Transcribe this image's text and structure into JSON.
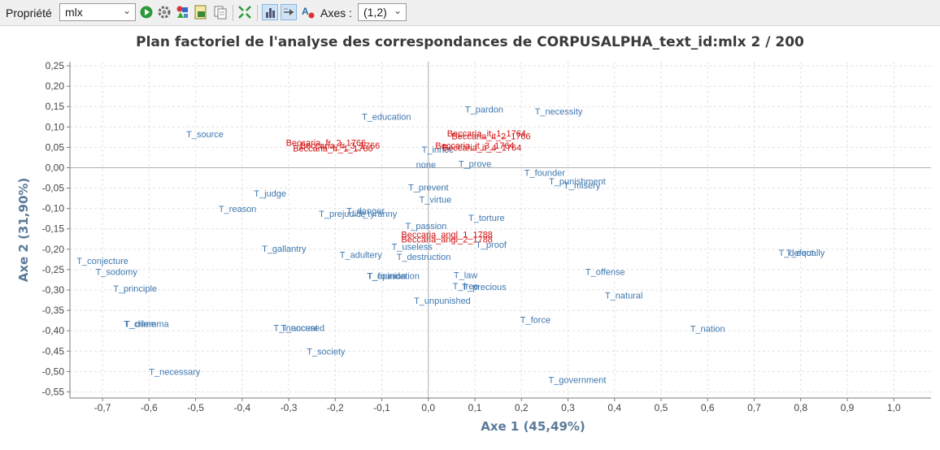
{
  "toolbar": {
    "property_label": "Propriété",
    "property_value": "mlx",
    "axes_label": "Axes :",
    "axes_value": "(1,2)",
    "icons": [
      "play-icon",
      "settings-icon",
      "shapes-icon",
      "export-icon",
      "copy-icon",
      "fit-icon",
      "bar-toggle-icon",
      "label-toggle-icon",
      "font-icon"
    ]
  },
  "chart_data": {
    "type": "scatter",
    "title": "Plan factoriel de l'analyse des correspondances de CORPUSALPHA_text_id:mlx 2 / 200",
    "xlabel": "Axe 1 (45,49%)",
    "ylabel": "Axe 2 (31,90%)",
    "xlim": [
      -0.77,
      1.08
    ],
    "ylim": [
      -0.565,
      0.26
    ],
    "xticks": [
      -0.7,
      -0.6,
      -0.5,
      -0.4,
      -0.3,
      -0.2,
      -0.1,
      0.0,
      0.1,
      0.2,
      0.3,
      0.4,
      0.5,
      0.6,
      0.7,
      0.8,
      0.9,
      1.0
    ],
    "xtick_labels": [
      "-0,7",
      "-0,6",
      "-0,5",
      "-0,4",
      "-0,3",
      "-0,2",
      "-0,1",
      "0,0",
      "0,1",
      "0,2",
      "0,3",
      "0,4",
      "0,5",
      "0,6",
      "0,7",
      "0,8",
      "0,9",
      "1,0"
    ],
    "yticks": [
      0.25,
      0.2,
      0.15,
      0.1,
      0.05,
      0.0,
      -0.05,
      -0.1,
      -0.15,
      -0.2,
      -0.25,
      -0.3,
      -0.35,
      -0.4,
      -0.45,
      -0.5,
      -0.55
    ],
    "ytick_labels": [
      "0,25",
      "0,20",
      "0,15",
      "0,10",
      "0,05",
      "0,00",
      "-0,05",
      "-0,10",
      "-0,15",
      "-0,20",
      "-0,25",
      "-0,30",
      "-0,35",
      "-0,40",
      "-0,45",
      "-0,50",
      "-0,55"
    ],
    "grid": true,
    "colors": {
      "cols": "#3f78b0",
      "rows": "#d11111",
      "axis": "#7a7a7a",
      "grid": "#e2e2e2",
      "label": "#5a7a99"
    },
    "points": [
      {
        "label": "T_education",
        "x": -0.09,
        "y": 0.125,
        "cls": "cols"
      },
      {
        "label": "T_pardon",
        "x": 0.12,
        "y": 0.143,
        "cls": "cols"
      },
      {
        "label": "T_necessity",
        "x": 0.28,
        "y": 0.138,
        "cls": "cols"
      },
      {
        "label": "T_source",
        "x": -0.48,
        "y": 0.083,
        "cls": "cols"
      },
      {
        "label": "none",
        "x": -0.005,
        "y": 0.008,
        "cls": "cols"
      },
      {
        "label": "T_prove",
        "x": 0.1,
        "y": 0.01,
        "cls": "cols"
      },
      {
        "label": "T_founder",
        "x": 0.25,
        "y": -0.012,
        "cls": "cols"
      },
      {
        "label": "T_punishment",
        "x": 0.32,
        "y": -0.033,
        "cls": "cols"
      },
      {
        "label": "T_misery",
        "x": 0.33,
        "y": -0.043,
        "cls": "cols"
      },
      {
        "label": "T_judge",
        "x": -0.34,
        "y": -0.063,
        "cls": "cols"
      },
      {
        "label": "T_prevent",
        "x": 0.0,
        "y": -0.048,
        "cls": "cols"
      },
      {
        "label": "T_virtue",
        "x": 0.015,
        "y": -0.078,
        "cls": "cols"
      },
      {
        "label": "T_reason",
        "x": -0.41,
        "y": -0.101,
        "cls": "cols"
      },
      {
        "label": "T_prejudice",
        "x": -0.185,
        "y": -0.113,
        "cls": "cols"
      },
      {
        "label": "T_danger",
        "x": -0.135,
        "y": -0.106,
        "cls": "cols"
      },
      {
        "label": "T_tyranny",
        "x": -0.11,
        "y": -0.113,
        "cls": "cols"
      },
      {
        "label": "T_passion",
        "x": -0.005,
        "y": -0.143,
        "cls": "cols"
      },
      {
        "label": "T_torture",
        "x": 0.125,
        "y": -0.123,
        "cls": "cols"
      },
      {
        "label": "T_useless",
        "x": -0.035,
        "y": -0.193,
        "cls": "cols"
      },
      {
        "label": "T_proof",
        "x": 0.135,
        "y": -0.188,
        "cls": "cols"
      },
      {
        "label": "T_gallantry",
        "x": -0.31,
        "y": -0.198,
        "cls": "cols"
      },
      {
        "label": "T_adultery",
        "x": -0.145,
        "y": -0.213,
        "cls": "cols"
      },
      {
        "label": "T_destruction",
        "x": -0.01,
        "y": -0.218,
        "cls": "cols"
      },
      {
        "label": "T_conjecture",
        "x": -0.7,
        "y": -0.228,
        "cls": "cols"
      },
      {
        "label": "T_sodomy",
        "x": -0.67,
        "y": -0.255,
        "cls": "cols"
      },
      {
        "label": "T_offense",
        "x": 0.38,
        "y": -0.255,
        "cls": "cols"
      },
      {
        "label": "T_law",
        "x": 0.08,
        "y": -0.263,
        "cls": "cols"
      },
      {
        "label": "T_opinion",
        "x": -0.09,
        "y": -0.265,
        "cls": "cols"
      },
      {
        "label": "T_foundation",
        "x": -0.075,
        "y": -0.265,
        "cls": "cols"
      },
      {
        "label": "T_free",
        "x": 0.08,
        "y": -0.29,
        "cls": "cols"
      },
      {
        "label": "T_precious",
        "x": 0.12,
        "y": -0.292,
        "cls": "cols"
      },
      {
        "label": "T_principle",
        "x": -0.63,
        "y": -0.296,
        "cls": "cols"
      },
      {
        "label": "T_natural",
        "x": 0.42,
        "y": -0.313,
        "cls": "cols"
      },
      {
        "label": "T_unpunished",
        "x": 0.03,
        "y": -0.326,
        "cls": "cols"
      },
      {
        "label": "T_defect",
        "x": 0.79,
        "y": -0.208,
        "cls": "cols"
      },
      {
        "label": "T_equally",
        "x": 0.81,
        "y": -0.208,
        "cls": "cols"
      },
      {
        "label": "T_force",
        "x": 0.23,
        "y": -0.373,
        "cls": "cols"
      },
      {
        "label": "T_crime",
        "x": -0.62,
        "y": -0.383,
        "cls": "cols"
      },
      {
        "label": "T_dilemma",
        "x": -0.605,
        "y": -0.383,
        "cls": "cols"
      },
      {
        "label": "T_innocent",
        "x": -0.285,
        "y": -0.393,
        "cls": "cols"
      },
      {
        "label": "T_accused",
        "x": -0.27,
        "y": -0.393,
        "cls": "cols"
      },
      {
        "label": "T_nation",
        "x": 0.6,
        "y": -0.395,
        "cls": "cols"
      },
      {
        "label": "T_society",
        "x": -0.22,
        "y": -0.45,
        "cls": "cols"
      },
      {
        "label": "T_necessary",
        "x": -0.545,
        "y": -0.5,
        "cls": "cols"
      },
      {
        "label": "T_government",
        "x": 0.32,
        "y": -0.52,
        "cls": "cols"
      },
      {
        "label": "T_innoc",
        "x": 0.02,
        "y": 0.045,
        "cls": "cols"
      },
      {
        "label": "Beccaria_fr_2_1766",
        "x": -0.22,
        "y": 0.062,
        "cls": "rows"
      },
      {
        "label": "Beccaria_fr_1_1766",
        "x": -0.205,
        "y": 0.048,
        "cls": "rows"
      },
      {
        "label": "Beccaria_fr_3_1766",
        "x": -0.19,
        "y": 0.055,
        "cls": "rows"
      },
      {
        "label": "Beccaria_it_1_1764",
        "x": 0.125,
        "y": 0.085,
        "cls": "rows"
      },
      {
        "label": "Beccaria_it_2_1766",
        "x": 0.135,
        "y": 0.078,
        "cls": "rows"
      },
      {
        "label": "Beccaria_it_3_1764",
        "x": 0.1,
        "y": 0.055,
        "cls": "rows"
      },
      {
        "label": "Beccaria_it_4_1764",
        "x": 0.115,
        "y": 0.05,
        "cls": "rows"
      },
      {
        "label": "Beccaria_angl_1_1788",
        "x": 0.04,
        "y": -0.163,
        "cls": "rows"
      },
      {
        "label": "Beccaria_angl_2_1788",
        "x": 0.04,
        "y": -0.175,
        "cls": "rows"
      }
    ]
  }
}
